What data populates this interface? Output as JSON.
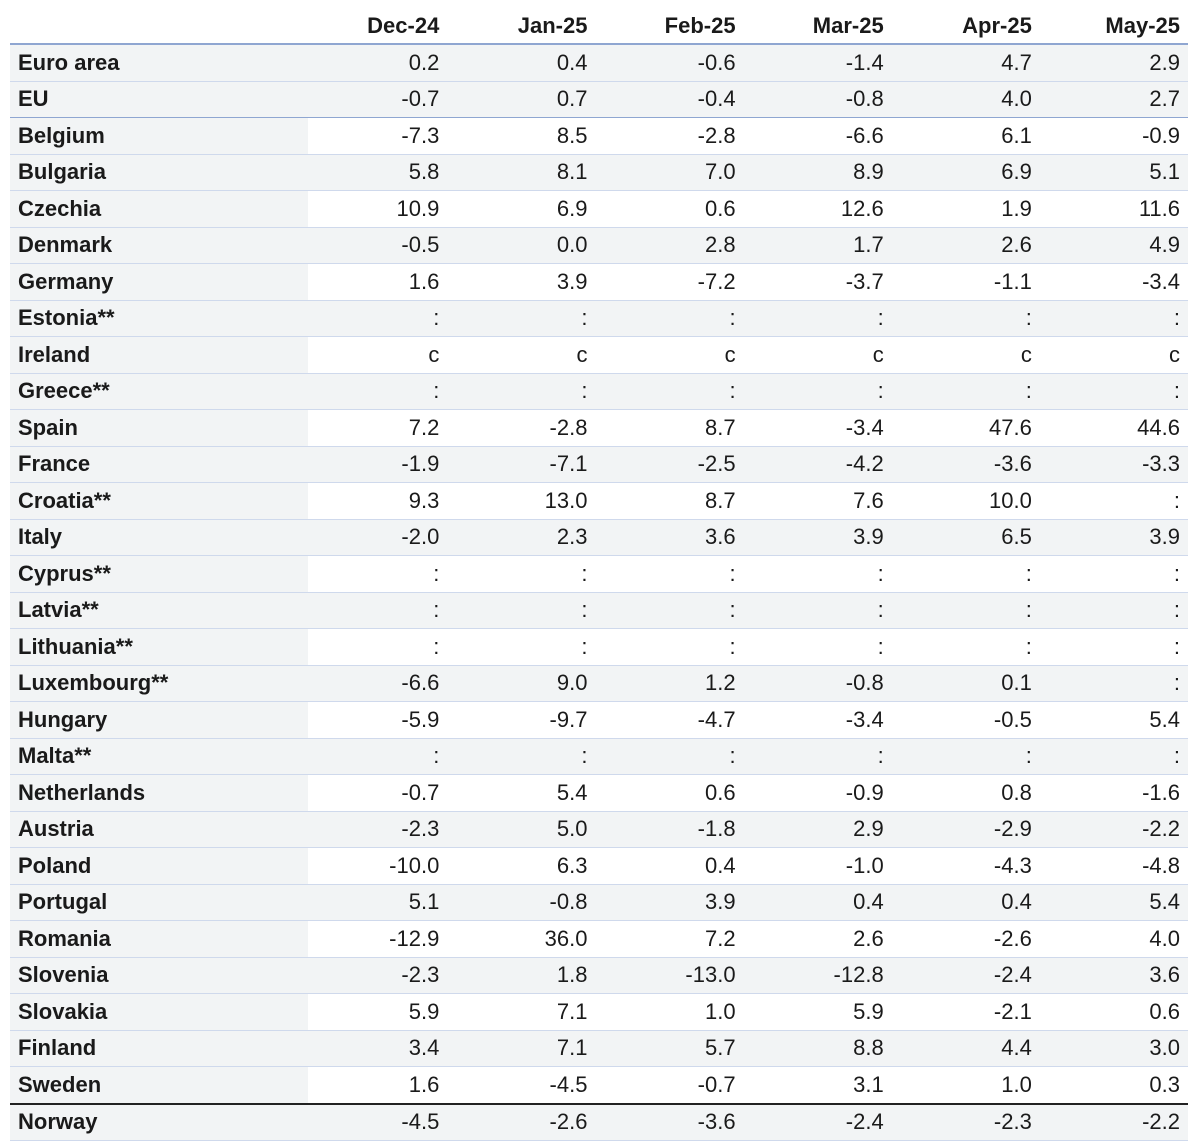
{
  "table": {
    "headers": [
      "",
      "Dec-24",
      "Jan-25",
      "Feb-25",
      "Mar-25",
      "Apr-25",
      "May-25"
    ],
    "rows": [
      {
        "country": "Euro area",
        "values": [
          "0.2",
          "0.4",
          "-0.6",
          "-1.4",
          "4.7",
          "2.9"
        ]
      },
      {
        "country": "EU",
        "values": [
          "-0.7",
          "0.7",
          "-0.4",
          "-0.8",
          "4.0",
          "2.7"
        ]
      },
      {
        "country": "Belgium",
        "values": [
          "-7.3",
          "8.5",
          "-2.8",
          "-6.6",
          "6.1",
          "-0.9"
        ]
      },
      {
        "country": "Bulgaria",
        "values": [
          "5.8",
          "8.1",
          "7.0",
          "8.9",
          "6.9",
          "5.1"
        ]
      },
      {
        "country": "Czechia",
        "values": [
          "10.9",
          "6.9",
          "0.6",
          "12.6",
          "1.9",
          "11.6"
        ]
      },
      {
        "country": "Denmark",
        "values": [
          "-0.5",
          "0.0",
          "2.8",
          "1.7",
          "2.6",
          "4.9"
        ]
      },
      {
        "country": "Germany",
        "values": [
          "1.6",
          "3.9",
          "-7.2",
          "-3.7",
          "-1.1",
          "-3.4"
        ]
      },
      {
        "country": "Estonia**",
        "values": [
          ":",
          ":",
          ":",
          ":",
          ":",
          ":"
        ]
      },
      {
        "country": "Ireland",
        "values": [
          "c",
          "c",
          "c",
          "c",
          "c",
          "c"
        ]
      },
      {
        "country": "Greece**",
        "values": [
          ":",
          ":",
          ":",
          ":",
          ":",
          ":"
        ]
      },
      {
        "country": "Spain",
        "values": [
          "7.2",
          "-2.8",
          "8.7",
          "-3.4",
          "47.6",
          "44.6"
        ]
      },
      {
        "country": "France",
        "values": [
          "-1.9",
          "-7.1",
          "-2.5",
          "-4.2",
          "-3.6",
          "-3.3"
        ]
      },
      {
        "country": "Croatia**",
        "values": [
          "9.3",
          "13.0",
          "8.7",
          "7.6",
          "10.0",
          ":"
        ]
      },
      {
        "country": "Italy",
        "values": [
          "-2.0",
          "2.3",
          "3.6",
          "3.9",
          "6.5",
          "3.9"
        ]
      },
      {
        "country": "Cyprus**",
        "values": [
          ":",
          ":",
          ":",
          ":",
          ":",
          ":"
        ]
      },
      {
        "country": "Latvia**",
        "values": [
          ":",
          ":",
          ":",
          ":",
          ":",
          ":"
        ]
      },
      {
        "country": "Lithuania**",
        "values": [
          ":",
          ":",
          ":",
          ":",
          ":",
          ":"
        ]
      },
      {
        "country": "Luxembourg**",
        "values": [
          "-6.6",
          "9.0",
          "1.2",
          "-0.8",
          "0.1",
          ":"
        ]
      },
      {
        "country": "Hungary",
        "values": [
          "-5.9",
          "-9.7",
          "-4.7",
          "-3.4",
          "-0.5",
          "5.4"
        ]
      },
      {
        "country": "Malta**",
        "values": [
          ":",
          ":",
          ":",
          ":",
          ":",
          ":"
        ]
      },
      {
        "country": "Netherlands",
        "values": [
          "-0.7",
          "5.4",
          "0.6",
          "-0.9",
          "0.8",
          "-1.6"
        ]
      },
      {
        "country": "Austria",
        "values": [
          "-2.3",
          "5.0",
          "-1.8",
          "2.9",
          "-2.9",
          "-2.2"
        ]
      },
      {
        "country": "Poland",
        "values": [
          "-10.0",
          "6.3",
          "0.4",
          "-1.0",
          "-4.3",
          "-4.8"
        ]
      },
      {
        "country": "Portugal",
        "values": [
          "5.1",
          "-0.8",
          "3.9",
          "0.4",
          "0.4",
          "5.4"
        ]
      },
      {
        "country": "Romania",
        "values": [
          "-12.9",
          "36.0",
          "7.2",
          "2.6",
          "-2.6",
          "4.0"
        ]
      },
      {
        "country": "Slovenia",
        "values": [
          "-2.3",
          "1.8",
          "-13.0",
          "-12.8",
          "-2.4",
          "3.6"
        ]
      },
      {
        "country": "Slovakia",
        "values": [
          "5.9",
          "7.1",
          "1.0",
          "5.9",
          "-2.1",
          "0.6"
        ]
      },
      {
        "country": "Finland",
        "values": [
          "3.4",
          "7.1",
          "5.7",
          "8.8",
          "4.4",
          "3.0"
        ]
      },
      {
        "country": "Sweden",
        "values": [
          "1.6",
          "-4.5",
          "-0.7",
          "3.1",
          "1.0",
          "0.3"
        ]
      },
      {
        "country": "Norway",
        "values": [
          "-4.5",
          "-2.6",
          "-3.6",
          "-2.4",
          "-2.3",
          "-2.2"
        ]
      }
    ]
  }
}
